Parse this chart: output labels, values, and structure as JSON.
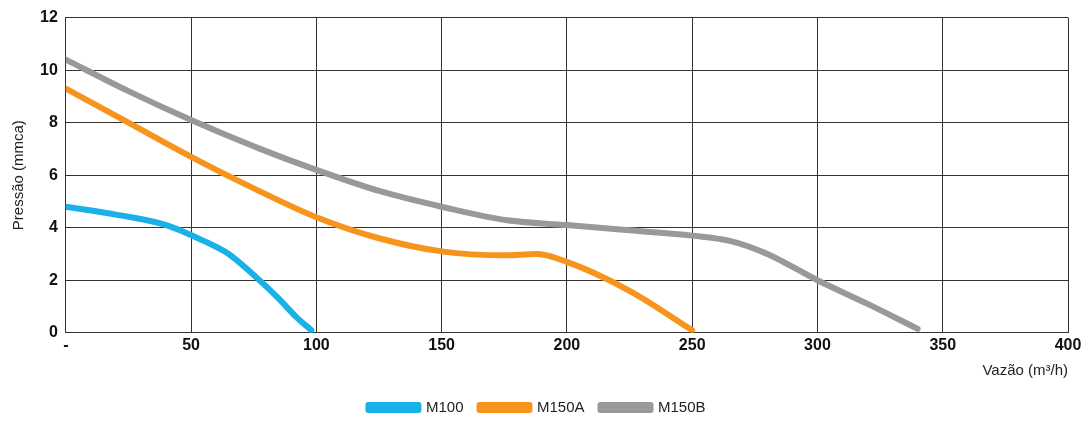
{
  "chart_data": {
    "type": "line",
    "xlabel": "Vazão (m³/h)",
    "ylabel": "Pressão (mmca)",
    "xlim": [
      0,
      400
    ],
    "xticks": [
      {
        "value": 0,
        "label": "-"
      },
      50,
      100,
      150,
      200,
      250,
      300,
      350,
      400
    ],
    "ylim": [
      0,
      12
    ],
    "yticks": [
      0,
      2,
      4,
      6,
      8,
      10,
      12
    ],
    "grid": true,
    "legend": "bottom",
    "marker": "none",
    "line_style": "solid",
    "series": [
      {
        "name": "M100",
        "color": "#1ab0e8",
        "x": [
          0,
          20,
          40,
          55,
          65,
          75,
          85,
          92,
          98
        ],
        "values": [
          4.8,
          4.5,
          4.1,
          3.5,
          3.0,
          2.2,
          1.3,
          0.6,
          0.1
        ]
      },
      {
        "name": "M150A",
        "color": "#f7941d",
        "x": [
          0,
          25,
          50,
          75,
          100,
          125,
          150,
          175,
          188,
          200,
          225,
          250
        ],
        "values": [
          9.3,
          8.0,
          6.7,
          5.5,
          4.4,
          3.6,
          3.1,
          2.95,
          3.0,
          2.7,
          1.6,
          0.1
        ]
      },
      {
        "name": "M150B",
        "color": "#999999",
        "x": [
          0,
          25,
          50,
          75,
          100,
          125,
          150,
          175,
          200,
          225,
          250,
          265,
          280,
          300,
          320,
          340
        ],
        "values": [
          10.4,
          9.2,
          8.1,
          7.1,
          6.2,
          5.4,
          4.8,
          4.3,
          4.1,
          3.9,
          3.7,
          3.5,
          3.0,
          2.0,
          1.1,
          0.15
        ]
      }
    ]
  }
}
